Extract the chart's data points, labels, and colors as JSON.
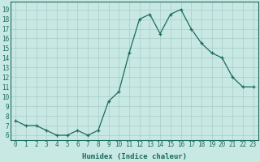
{
  "x": [
    0,
    1,
    2,
    3,
    4,
    5,
    6,
    7,
    8,
    9,
    10,
    11,
    12,
    13,
    14,
    15,
    16,
    17,
    18,
    19,
    20,
    21,
    22,
    23
  ],
  "y": [
    7.5,
    7.0,
    7.0,
    6.5,
    6.0,
    6.0,
    6.5,
    6.0,
    6.5,
    9.5,
    10.5,
    14.5,
    18.0,
    18.5,
    16.5,
    18.5,
    19.0,
    17.0,
    15.5,
    14.5,
    14.0,
    12.0,
    11.0,
    11.0
  ],
  "line_color": "#1a6b5e",
  "marker": "+",
  "marker_size": 3,
  "bg_color": "#c8e8e4",
  "grid_color": "#a8ccc8",
  "xlabel": "Humidex (Indice chaleur)",
  "ylabel_ticks": [
    6,
    7,
    8,
    9,
    10,
    11,
    12,
    13,
    14,
    15,
    16,
    17,
    18,
    19
  ],
  "ylim": [
    5.5,
    19.8
  ],
  "xlim": [
    -0.5,
    23.5
  ],
  "xticks": [
    0,
    1,
    2,
    3,
    4,
    5,
    6,
    7,
    8,
    9,
    10,
    11,
    12,
    13,
    14,
    15,
    16,
    17,
    18,
    19,
    20,
    21,
    22,
    23
  ],
  "tick_color": "#1a6b5e",
  "label_fontsize": 6.5,
  "tick_fontsize": 5.5,
  "linewidth": 0.9,
  "markeredgewidth": 0.9
}
